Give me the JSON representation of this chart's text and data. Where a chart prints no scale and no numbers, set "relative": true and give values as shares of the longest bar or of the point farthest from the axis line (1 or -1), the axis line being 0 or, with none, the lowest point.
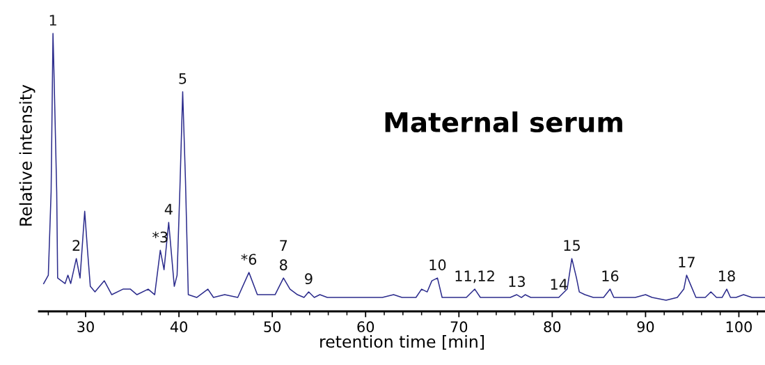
{
  "chart_data": {
    "type": "line",
    "title": "Maternal serum",
    "xlabel": "retention time [min]",
    "ylabel": "Relative intensity",
    "relative": true,
    "tick_labels": "x",
    "grid": false,
    "legend": false,
    "marker": "none",
    "line_style": "solid",
    "xlim": [
      25,
      102.8
    ],
    "xticks": [
      30,
      40,
      50,
      60,
      70,
      80,
      90,
      100
    ],
    "series": [
      {
        "color": "#2b2b8c",
        "x": [
          25.5,
          26.0,
          26.3,
          26.5,
          26.6,
          26.9,
          27.0,
          27.4,
          27.8,
          28.1,
          28.4,
          29.0,
          29.4,
          29.9,
          30.2,
          30.5,
          31.0,
          32.0,
          32.8,
          34.0,
          34.8,
          35.5,
          36.7,
          37.4,
          38.0,
          38.4,
          38.9,
          39.5,
          39.8,
          40.1,
          40.4,
          40.7,
          41.0,
          41.9,
          43.1,
          43.7,
          44.9,
          46.3,
          47.5,
          48.4,
          49.4,
          50.3,
          51.2,
          51.9,
          52.7,
          53.4,
          53.9,
          54.5,
          55.1,
          55.9,
          58.3,
          59.6,
          60.9,
          61.8,
          63.0,
          63.9,
          65.4,
          66.0,
          66.6,
          67.1,
          67.7,
          68.2,
          69.1,
          70.2,
          70.8,
          71.7,
          72.3,
          74.0,
          75.5,
          76.2,
          76.7,
          77.1,
          77.7,
          79.7,
          80.7,
          81.6,
          82.1,
          82.6,
          82.9,
          83.5,
          84.4,
          85.5,
          86.2,
          86.6,
          88.0,
          88.9,
          90.0,
          90.7,
          92.2,
          93.4,
          94.1,
          94.4,
          94.9,
          95.4,
          96.4,
          97.0,
          97.6,
          98.2,
          98.7,
          99.1,
          99.7,
          100.5,
          101.4,
          102.8
        ],
        "values": [
          0.1,
          0.13,
          0.43,
          1.0,
          0.87,
          0.43,
          0.12,
          0.11,
          0.1,
          0.13,
          0.1,
          0.19,
          0.12,
          0.36,
          0.22,
          0.09,
          0.07,
          0.11,
          0.06,
          0.08,
          0.08,
          0.06,
          0.08,
          0.06,
          0.22,
          0.15,
          0.32,
          0.09,
          0.13,
          0.44,
          0.79,
          0.47,
          0.06,
          0.05,
          0.08,
          0.05,
          0.06,
          0.05,
          0.14,
          0.06,
          0.06,
          0.06,
          0.12,
          0.08,
          0.06,
          0.05,
          0.07,
          0.05,
          0.06,
          0.05,
          0.05,
          0.05,
          0.05,
          0.05,
          0.06,
          0.05,
          0.05,
          0.08,
          0.07,
          0.11,
          0.12,
          0.05,
          0.05,
          0.05,
          0.05,
          0.08,
          0.05,
          0.05,
          0.05,
          0.06,
          0.05,
          0.06,
          0.05,
          0.05,
          0.05,
          0.08,
          0.19,
          0.12,
          0.07,
          0.06,
          0.05,
          0.05,
          0.08,
          0.05,
          0.05,
          0.05,
          0.06,
          0.05,
          0.04,
          0.05,
          0.08,
          0.13,
          0.09,
          0.05,
          0.05,
          0.07,
          0.05,
          0.05,
          0.08,
          0.05,
          0.05,
          0.06,
          0.05,
          0.05
        ]
      }
    ],
    "annotations": [
      {
        "text": "1",
        "x": 26.5,
        "y": 1.0
      },
      {
        "text": "2",
        "x": 29.0,
        "y": 0.19
      },
      {
        "text": "*3",
        "x": 38.0,
        "y": 0.22
      },
      {
        "text": "4",
        "x": 38.9,
        "y": 0.32
      },
      {
        "text": "5",
        "x": 40.4,
        "y": 0.79
      },
      {
        "text": "*6",
        "x": 47.5,
        "y": 0.14
      },
      {
        "text": "7",
        "x": 51.2,
        "y": 0.12
      },
      {
        "text": "8",
        "x": 51.2,
        "y": 0.12
      },
      {
        "text": "9",
        "x": 53.9,
        "y": 0.07
      },
      {
        "text": "10",
        "x": 67.7,
        "y": 0.12
      },
      {
        "text": "11,12",
        "x": 71.7,
        "y": 0.08
      },
      {
        "text": "13",
        "x": 76.2,
        "y": 0.06
      },
      {
        "text": "14",
        "x": 80.7,
        "y": 0.05
      },
      {
        "text": "15",
        "x": 82.1,
        "y": 0.19
      },
      {
        "text": "16",
        "x": 86.2,
        "y": 0.08
      },
      {
        "text": "17",
        "x": 94.4,
        "y": 0.13
      },
      {
        "text": "18",
        "x": 98.7,
        "y": 0.08
      }
    ]
  }
}
